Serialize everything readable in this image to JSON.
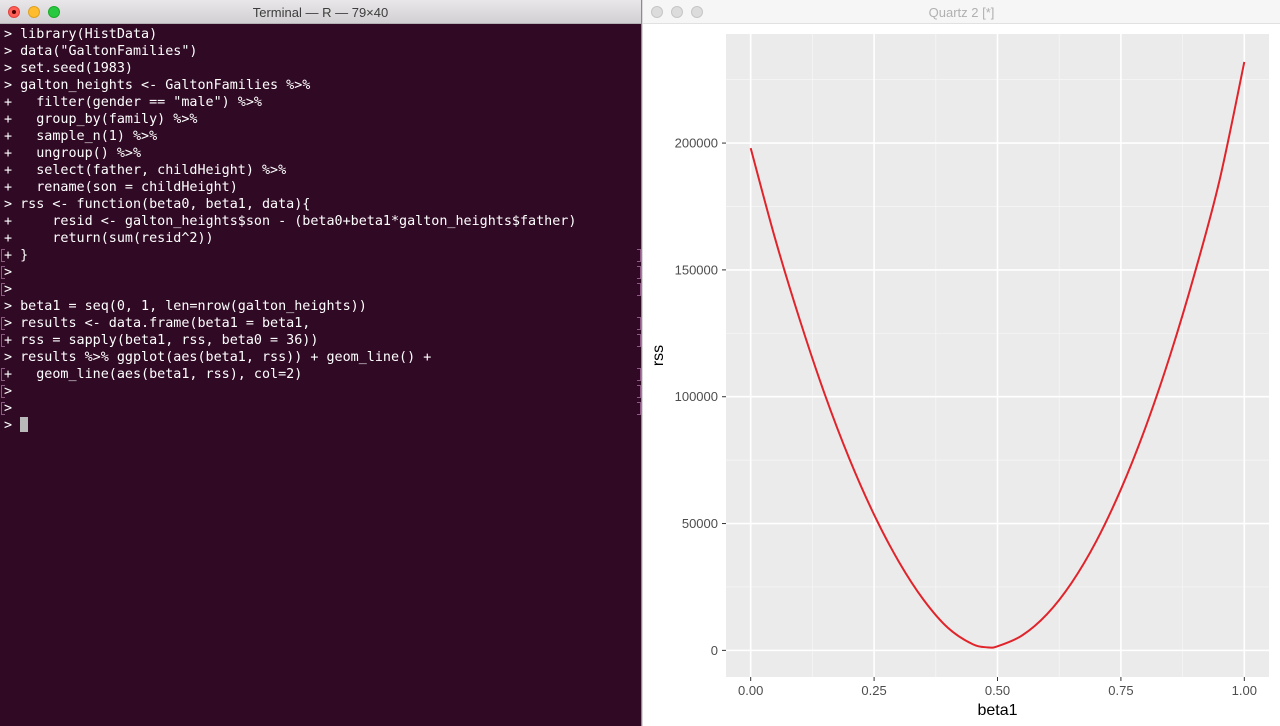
{
  "terminal": {
    "title": "Terminal — R — 79×40",
    "lines": [
      {
        "text": "> library(HistData)",
        "marked": false
      },
      {
        "text": "> data(\"GaltonFamilies\")",
        "marked": false
      },
      {
        "text": "> set.seed(1983)",
        "marked": false
      },
      {
        "text": "> galton_heights <- GaltonFamilies %>%",
        "marked": false
      },
      {
        "text": "+   filter(gender == \"male\") %>%",
        "marked": false
      },
      {
        "text": "+   group_by(family) %>%",
        "marked": false
      },
      {
        "text": "+   sample_n(1) %>%",
        "marked": false
      },
      {
        "text": "+   ungroup() %>%",
        "marked": false
      },
      {
        "text": "+   select(father, childHeight) %>%",
        "marked": false
      },
      {
        "text": "+   rename(son = childHeight)",
        "marked": false
      },
      {
        "text": "> rss <- function(beta0, beta1, data){",
        "marked": false
      },
      {
        "text": "+     resid <- galton_heights$son - (beta0+beta1*galton_heights$father)",
        "marked": false
      },
      {
        "text": "+     return(sum(resid^2))",
        "marked": false
      },
      {
        "text": "+ }",
        "marked": true
      },
      {
        "text": ">",
        "marked": true
      },
      {
        "text": ">",
        "marked": true
      },
      {
        "text": "> beta1 = seq(0, 1, len=nrow(galton_heights))",
        "marked": false
      },
      {
        "text": "> results <- data.frame(beta1 = beta1,",
        "marked": true
      },
      {
        "text": "+ rss = sapply(beta1, rss, beta0 = 36))",
        "marked": true
      },
      {
        "text": "> results %>% ggplot(aes(beta1, rss)) + geom_line() +",
        "marked": false
      },
      {
        "text": "+   geom_line(aes(beta1, rss), col=2)",
        "marked": true
      },
      {
        "text": ">",
        "marked": true
      },
      {
        "text": ">",
        "marked": true
      },
      {
        "text": "> ",
        "marked": false,
        "cursor": true
      }
    ]
  },
  "quartz": {
    "title": "Quartz 2 [*]"
  },
  "chart_data": {
    "type": "line",
    "xlabel": "beta1",
    "ylabel": "rss",
    "xlim": [
      -0.05,
      1.05
    ],
    "ylim": [
      -10500,
      243000
    ],
    "x_ticks": [
      0,
      0.25,
      0.5,
      0.75,
      1
    ],
    "x_tick_labels": [
      "0.00",
      "0.25",
      "0.50",
      "0.75",
      "1.00"
    ],
    "y_ticks": [
      0,
      50000,
      100000,
      150000,
      200000
    ],
    "y_tick_labels": [
      "0",
      "50000",
      "100000",
      "150000",
      "200000"
    ],
    "grid": true,
    "series": [
      {
        "color": "#e0242b",
        "x": [
          0,
          0.05,
          0.1,
          0.15,
          0.2,
          0.25,
          0.3,
          0.35,
          0.4,
          0.45,
          0.48,
          0.5,
          0.55,
          0.6,
          0.65,
          0.7,
          0.75,
          0.8,
          0.85,
          0.9,
          0.95,
          1
        ],
        "y": [
          198000,
          162000,
          130000,
          101000,
          75500,
          53500,
          35000,
          20000,
          8800,
          2400,
          1200,
          1600,
          5900,
          14200,
          26600,
          43000,
          63500,
          88000,
          116500,
          149000,
          185500,
          232000
        ]
      }
    ]
  }
}
